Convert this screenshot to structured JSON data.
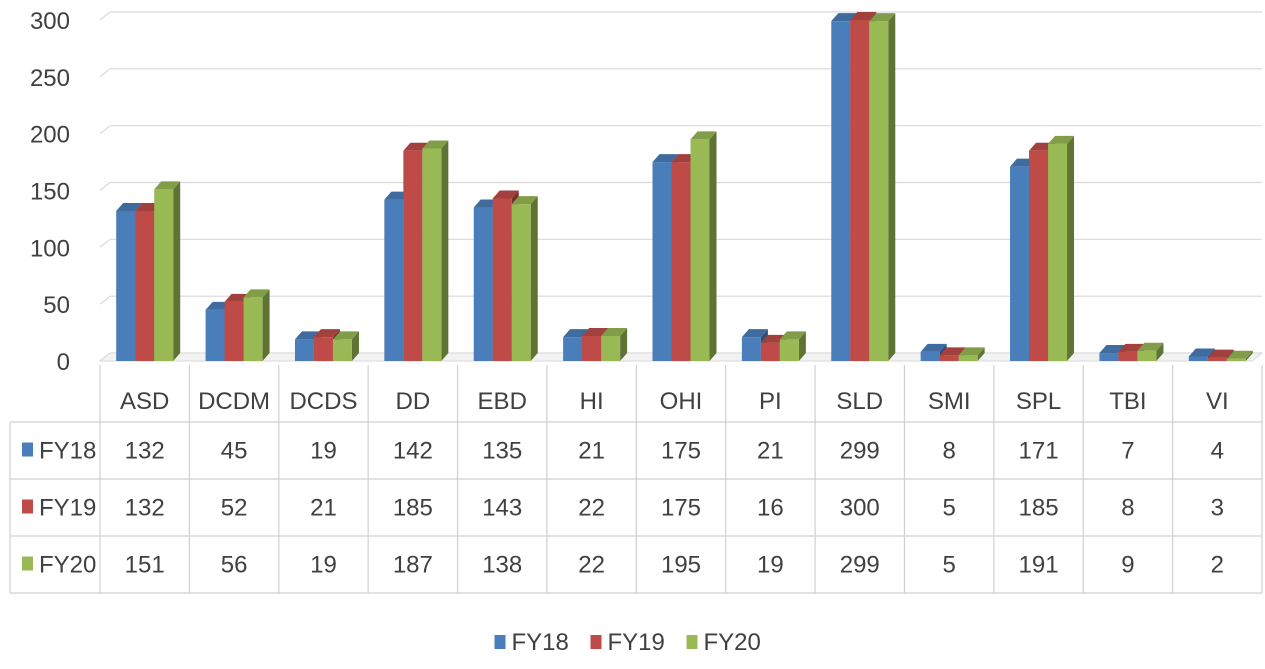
{
  "chart_data": {
    "type": "bar",
    "title": "",
    "xlabel": "",
    "ylabel": "",
    "categories": [
      "ASD",
      "DCDM",
      "DCDS",
      "DD",
      "EBD",
      "HI",
      "OHI",
      "PI",
      "SLD",
      "SMI",
      "SPL",
      "TBI",
      "VI"
    ],
    "series": [
      {
        "name": "FY18",
        "values": [
          132,
          45,
          19,
          142,
          135,
          21,
          175,
          21,
          299,
          8,
          171,
          7,
          4
        ],
        "color": "#4a7ebb"
      },
      {
        "name": "FY19",
        "values": [
          132,
          52,
          21,
          185,
          143,
          22,
          175,
          16,
          300,
          5,
          185,
          8,
          3
        ],
        "color": "#be4b48"
      },
      {
        "name": "FY20",
        "values": [
          151,
          56,
          19,
          187,
          138,
          22,
          195,
          19,
          299,
          5,
          191,
          9,
          2
        ],
        "color": "#98b954"
      }
    ],
    "ylim": [
      0,
      300
    ],
    "yticks": [
      "0",
      "50",
      "100",
      "150",
      "200",
      "250",
      "300"
    ],
    "grid": true,
    "style": "3d-clustered-column",
    "data_table": true,
    "legend_position": "bottom"
  }
}
